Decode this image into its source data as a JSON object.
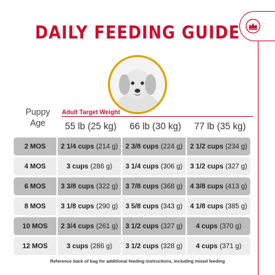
{
  "title": "DAILY FEEDING GUIDE",
  "colors": {
    "brand_red": "#c8102e",
    "ring_gold": "#d9a400",
    "row_dark": "#bdbdbd",
    "row_light": "#ececec"
  },
  "logo_icon": "crown-icon",
  "header": {
    "puppy_age_line1": "Puppy",
    "puppy_age_line2": "Age",
    "adult_target_weight": "Adult Target Weight",
    "columns": [
      "55 lb (25 kg)",
      "66 lb (30 kg)",
      "77 lb (35 kg)"
    ]
  },
  "rows": [
    {
      "age": "2 MOS",
      "c1_cups": "2 1/4 cups",
      "c1_g": "(214 g)",
      "c2_cups": "2 3/8 cups",
      "c2_g": "(224 g)",
      "c3_cups": "2 1/2 cups",
      "c3_g": "(234 g)"
    },
    {
      "age": "4 MOS",
      "c1_cups": "3 cups",
      "c1_g": "(286 g)",
      "c2_cups": "3 1/4 cups",
      "c2_g": "(306 g)",
      "c3_cups": "3 1/2 cups",
      "c3_g": "(327 g)"
    },
    {
      "age": "6 MOS",
      "c1_cups": "3 3/8 cups",
      "c1_g": "(322 g)",
      "c2_cups": "3 7/8 cups",
      "c2_g": "(368 g)",
      "c3_cups": "4 3/8 cups",
      "c3_g": "(413 g)"
    },
    {
      "age": "8 MOS",
      "c1_cups": "3 1/8 cups",
      "c1_g": "(290 g)",
      "c2_cups": "3 5/8 cups",
      "c2_g": "(343 g)",
      "c3_cups": "4 1/8 cups",
      "c3_g": "(385 g)"
    },
    {
      "age": "10 MOS",
      "c1_cups": "2 3/4 cups",
      "c1_g": "(261 g)",
      "c2_cups": "3 1/2 cups",
      "c2_g": "(327 g)",
      "c3_cups": "4 cups",
      "c3_g": "(370 g)"
    },
    {
      "age": "12 MOS",
      "c1_cups": "3 cups",
      "c1_g": "(286 g)",
      "c2_cups": "3 1/2 cups",
      "c2_g": "(328 g)",
      "c3_cups": "4 cups",
      "c3_g": "(371 g)"
    }
  ],
  "footnote": "Reference back of bag for additional feeding instructions, including mixed feeding"
}
